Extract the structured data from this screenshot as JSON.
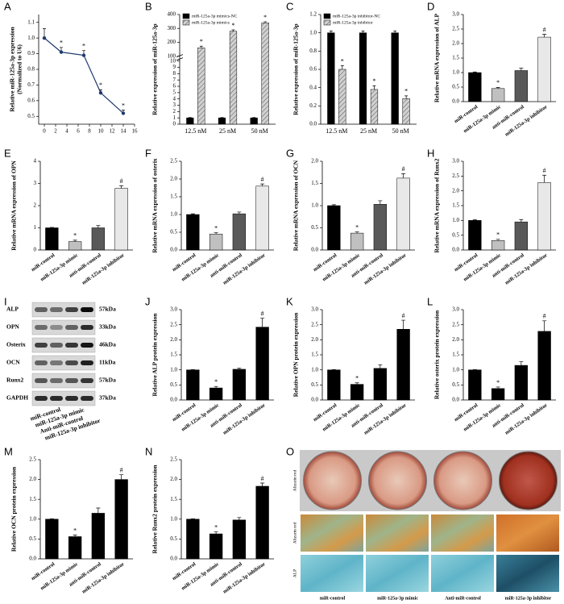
{
  "chart_data": [
    {
      "type": "line",
      "label": "A",
      "ylabel": [
        "Relative miR-125a-3p expression",
        "(Normalized to U6)"
      ],
      "x": [
        0,
        3,
        7,
        10,
        14
      ],
      "values": [
        1.0,
        0.91,
        0.89,
        0.65,
        0.52
      ],
      "errors": [
        0.06,
        0.03,
        0.03,
        0.02,
        0.02
      ],
      "annotations": [
        null,
        "*",
        "*",
        "*",
        "*"
      ],
      "color": "#1f3a6e",
      "xlim": [
        -1,
        16
      ],
      "xticks": [
        0,
        2,
        4,
        6,
        8,
        10,
        12,
        14,
        16
      ],
      "ylim": [
        0.45,
        1.15
      ],
      "yticks": [
        0.5,
        0.6,
        0.7,
        0.8,
        0.9,
        {
          "value": 1,
          "label": "1.0"
        },
        1.1
      ]
    },
    {
      "type": "grouped_bar",
      "label": "B",
      "ylabel": "Relative expression of miR-125a-3p",
      "categories": [
        "12.5 nM",
        "25 nM",
        "50 nM"
      ],
      "series": [
        {
          "name": "miR-125a-3p mimics-NC",
          "color": "#000000",
          "pattern": "solid",
          "values": [
            1,
            1,
            1
          ],
          "errors": [
            0.05,
            0.05,
            0.05
          ]
        },
        {
          "name": "miR-125a-3p mimics",
          "color": "#bfbfbf",
          "pattern": "hatch",
          "values": [
            160,
            280,
            340
          ],
          "errors": [
            12,
            10,
            8
          ],
          "annotations": [
            "*",
            "*",
            "*"
          ]
        }
      ],
      "ylim": [
        0,
        10
      ],
      "yticks": [
        0,
        1,
        2,
        3,
        4,
        5,
        6,
        7,
        8,
        9,
        10
      ],
      "break_ylim": [
        100,
        400
      ],
      "break_yticks": [
        100,
        200,
        300,
        400
      ]
    },
    {
      "type": "grouped_bar",
      "label": "C",
      "ylabel": "Relative expression of miR-125a-3p",
      "categories": [
        "12.5 nM",
        "25 nM",
        "50 nM"
      ],
      "series": [
        {
          "name": "miR-125a-3p inhibitor-NC",
          "color": "#000000",
          "pattern": "solid",
          "values": [
            1,
            1,
            1
          ],
          "errors": [
            0.02,
            0.02,
            0.02
          ]
        },
        {
          "name": "miR-125a-3p inhibitor",
          "color": "#bfbfbf",
          "pattern": "hatch",
          "values": [
            0.6,
            0.38,
            0.28
          ],
          "errors": [
            0.04,
            0.04,
            0.03
          ],
          "annotations": [
            "*",
            "*",
            "*"
          ]
        }
      ],
      "ylim": [
        0,
        1.2
      ],
      "yticks": [
        {
          "value": 0,
          "label": "0.0"
        },
        0.2,
        0.4,
        0.6,
        0.8,
        {
          "value": 1,
          "label": "1.0"
        },
        1.2
      ]
    },
    {
      "type": "bar",
      "label": "D",
      "ylabel": "Relative mRNA  expression of ALP",
      "categories": [
        "miR-control",
        "miR-125a-3p mimic",
        "anti-miR-control",
        "miR-125a-3p inhibitor"
      ],
      "values": [
        1,
        0.45,
        1.07,
        2.22
      ],
      "errors": [
        0.02,
        0.04,
        0.08,
        0.1
      ],
      "annotations": [
        null,
        "*",
        null,
        "#"
      ],
      "colors": [
        "#000000",
        "#c0c0c0",
        "#595959",
        "#e8e8e8"
      ],
      "ylim": [
        0,
        3
      ],
      "yticks": [
        {
          "value": 0,
          "label": "0.0"
        },
        0.5,
        {
          "value": 1,
          "label": "1.0"
        },
        1.5,
        {
          "value": 2,
          "label": "2.0"
        },
        2.5,
        {
          "value": 3,
          "label": "3.0"
        }
      ]
    },
    {
      "type": "bar",
      "label": "E",
      "ylabel": "Relative mRNA  expression of OPN",
      "categories": [
        "miR-control",
        "miR-125a-3p mimic",
        "anti-miR-control",
        "miR-125a-3p inhibitor"
      ],
      "values": [
        1,
        0.38,
        1.0,
        2.78
      ],
      "errors": [
        0.02,
        0.06,
        0.1,
        0.12
      ],
      "annotations": [
        null,
        "*",
        null,
        "#"
      ],
      "colors": [
        "#000000",
        "#c0c0c0",
        "#595959",
        "#e8e8e8"
      ],
      "ylim": [
        0,
        4
      ],
      "yticks": [
        0,
        1,
        2,
        3,
        4
      ]
    },
    {
      "type": "bar",
      "label": "F",
      "ylabel": "Relative mRNA  expression of osterix",
      "categories": [
        "miR-control",
        "miR-125a-3p mimic",
        "anti-miR-control",
        "miR-125a-3p inhibitor"
      ],
      "values": [
        1,
        0.45,
        1.02,
        1.8
      ],
      "errors": [
        0.02,
        0.04,
        0.05,
        0.06
      ],
      "annotations": [
        null,
        "*",
        null,
        "#"
      ],
      "colors": [
        "#000000",
        "#c0c0c0",
        "#595959",
        "#e8e8e8"
      ],
      "ylim": [
        0,
        2.5
      ],
      "yticks": [
        {
          "value": 0,
          "label": "0.0"
        },
        0.5,
        {
          "value": 1,
          "label": "1.0"
        },
        1.5,
        {
          "value": 2,
          "label": "2.0"
        },
        2.5
      ]
    },
    {
      "type": "bar",
      "label": "G",
      "ylabel": "Relative mRNA  expression of OCN",
      "categories": [
        "miR-control",
        "miR-125a-3p mimic",
        "anti-miR-control",
        "miR-125a-3p inhibitor"
      ],
      "values": [
        1,
        0.38,
        1.03,
        1.62
      ],
      "errors": [
        0.02,
        0.03,
        0.08,
        0.1
      ],
      "annotations": [
        null,
        "*",
        null,
        "#"
      ],
      "colors": [
        "#000000",
        "#c0c0c0",
        "#595959",
        "#e8e8e8"
      ],
      "ylim": [
        0,
        2
      ],
      "yticks": [
        {
          "value": 0,
          "label": "0.0"
        },
        0.5,
        {
          "value": 1,
          "label": "1.0"
        },
        1.5,
        {
          "value": 2,
          "label": "2.0"
        }
      ]
    },
    {
      "type": "bar",
      "label": "H",
      "ylabel": "Relative mRNA  expression of Runx2",
      "categories": [
        "miR-control",
        "miR-125a-3p mimic",
        "anti-miR-control",
        "miR-125a-3p inhibitor"
      ],
      "values": [
        1,
        0.32,
        0.95,
        2.28
      ],
      "errors": [
        0.02,
        0.04,
        0.08,
        0.25
      ],
      "annotations": [
        null,
        "*",
        null,
        "#"
      ],
      "colors": [
        "#000000",
        "#c0c0c0",
        "#595959",
        "#e8e8e8"
      ],
      "ylim": [
        0,
        3
      ],
      "yticks": [
        {
          "value": 0,
          "label": "0.0"
        },
        0.5,
        {
          "value": 1,
          "label": "1.0"
        },
        1.5,
        {
          "value": 2,
          "label": "2.0"
        },
        2.5,
        {
          "value": 3,
          "label": "3.0"
        }
      ]
    },
    {
      "type": "blot",
      "label": "I",
      "rows": [
        {
          "name": "ALP",
          "kda": "57kDa"
        },
        {
          "name": "OPN",
          "kda": "33kDa"
        },
        {
          "name": "Osterix",
          "kda": "46kDa"
        },
        {
          "name": "OCN",
          "kda": "11kDa"
        },
        {
          "name": "Runx2",
          "kda": "57kDa"
        },
        {
          "name": "GAPDH",
          "kda": "37kDa"
        }
      ],
      "lanes": [
        "miR-control",
        "miR-125a-3p mimic",
        "Anti-miR-control",
        "miR-125a-3p inhibitor"
      ]
    },
    {
      "type": "bar",
      "label": "J",
      "ylabel": "Relative ALP protein expression",
      "categories": [
        "miR-control",
        "miR-125a-3p mimic",
        "anti-miR-control",
        "miR-125a-3p inhibitor"
      ],
      "values": [
        1,
        0.4,
        1.02,
        2.42
      ],
      "errors": [
        0.01,
        0.05,
        0.04,
        0.3
      ],
      "annotations": [
        null,
        "*",
        null,
        "#"
      ],
      "color": "#000000",
      "ylim": [
        0,
        3
      ],
      "yticks": [
        {
          "value": 0,
          "label": "0.0"
        },
        0.5,
        {
          "value": 1,
          "label": "1.0"
        },
        1.5,
        {
          "value": 2,
          "label": "2.0"
        },
        2.5,
        {
          "value": 3,
          "label": "3.0"
        }
      ]
    },
    {
      "type": "bar",
      "label": "K",
      "ylabel": "Relative OPN protein expression",
      "categories": [
        "miR-control",
        "miR-125a-3p mimic",
        "anti-miR-control",
        "miR-125a-3p inhibitor"
      ],
      "values": [
        1,
        0.52,
        1.05,
        2.35
      ],
      "errors": [
        0.01,
        0.05,
        0.12,
        0.3
      ],
      "annotations": [
        null,
        "*",
        null,
        "#"
      ],
      "color": "#000000",
      "ylim": [
        0,
        3
      ],
      "yticks": [
        {
          "value": 0,
          "label": "0.0"
        },
        0.5,
        {
          "value": 1,
          "label": "1.0"
        },
        1.5,
        {
          "value": 2,
          "label": "2.0"
        },
        2.5,
        {
          "value": 3,
          "label": "3.0"
        }
      ]
    },
    {
      "type": "bar",
      "label": "L",
      "ylabel": "Relative osterix protein expression",
      "categories": [
        "miR-control",
        "miR-125a-3p mimic",
        "anti-miR-control",
        "miR-125a-3p inhibitor"
      ],
      "values": [
        1,
        0.38,
        1.15,
        2.28
      ],
      "errors": [
        0.01,
        0.05,
        0.12,
        0.35
      ],
      "annotations": [
        null,
        "*",
        null,
        "#"
      ],
      "color": "#000000",
      "ylim": [
        0,
        3
      ],
      "yticks": [
        {
          "value": 0,
          "label": "0.0"
        },
        0.5,
        {
          "value": 1,
          "label": "1.0"
        },
        1.5,
        {
          "value": 2,
          "label": "2.0"
        },
        2.5,
        {
          "value": 3,
          "label": "3.0"
        }
      ]
    },
    {
      "type": "bar",
      "label": "M",
      "ylabel": "Relative OCN  protein expression",
      "categories": [
        "miR-control",
        "miR-125a-3p mimic",
        "anti-miR-control",
        "miR-125a-3p inhibitor"
      ],
      "values": [
        1,
        0.56,
        1.15,
        2.0
      ],
      "errors": [
        0.01,
        0.04,
        0.13,
        0.12
      ],
      "annotations": [
        null,
        "*",
        null,
        "#"
      ],
      "color": "#000000",
      "ylim": [
        0,
        2.5
      ],
      "yticks": [
        {
          "value": 0,
          "label": "0.0"
        },
        0.5,
        {
          "value": 1,
          "label": "1.0"
        },
        1.5,
        {
          "value": 2,
          "label": "2.0"
        },
        2.5
      ]
    },
    {
      "type": "bar",
      "label": "N",
      "ylabel": "Relative Runx2 protein expression",
      "categories": [
        "miR-control",
        "miR-125a-3p mimic",
        "anti-miR-control",
        "miR-125a-3p inhibitor"
      ],
      "values": [
        1,
        0.63,
        0.98,
        1.83
      ],
      "errors": [
        0.01,
        0.05,
        0.06,
        0.08
      ],
      "annotations": [
        null,
        "*",
        null,
        "#"
      ],
      "color": "#000000",
      "ylim": [
        0,
        2.5
      ],
      "yticks": [
        {
          "value": 0,
          "label": "0.0"
        },
        0.5,
        {
          "value": 1,
          "label": "1.0"
        },
        1.5,
        {
          "value": 2,
          "label": "2.0"
        },
        2.5
      ]
    },
    {
      "type": "photo",
      "label": "O",
      "row_labels": [
        "Alizarin red",
        "Alizarin red",
        "ALP"
      ],
      "columns": [
        "miR-control",
        "miR-125a-3p mimic",
        "Anti-miR-control",
        "miR-125a-3p inhibitor"
      ]
    }
  ]
}
